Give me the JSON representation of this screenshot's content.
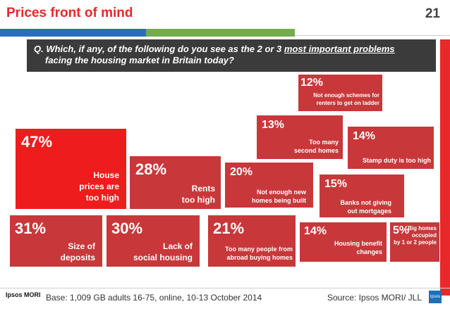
{
  "header": {
    "title": "Prices front of mind",
    "page_number": "21"
  },
  "question": {
    "line1_prefix": "Q. Which, if any, of the following do you see as the 2 or 3 ",
    "line1_underlined": "most important problems",
    "line2": "facing the housing market in Britain today?"
  },
  "colors": {
    "accent_red": "#e8282b",
    "box_red": "#c8383a",
    "highlight_red": "#ee1c1c",
    "question_bg": "#3b3b3b",
    "rule_blue": "#2a6ebb",
    "rule_green": "#72ac4c"
  },
  "chart_data": {
    "type": "table",
    "items": [
      {
        "pct": "47%",
        "label": "House\nprices are\ntoo high"
      },
      {
        "pct": "28%",
        "label": "Rents\ntoo high"
      },
      {
        "pct": "31%",
        "label": "Size of\ndeposits"
      },
      {
        "pct": "30%",
        "label": "Lack of\nsocial housing"
      },
      {
        "pct": "21%",
        "label": "Too many people from\nabroad buying homes"
      },
      {
        "pct": "20%",
        "label": "Not enough new\nhomes being built"
      },
      {
        "pct": "13%",
        "label": "Too many\nsecond homes"
      },
      {
        "pct": "12%",
        "label": "Not enough schemes for\nrenters to get on ladder"
      },
      {
        "pct": "14%",
        "label": "Stamp duty is too high"
      },
      {
        "pct": "15%",
        "label": "Banks not giving\nout mortgages"
      },
      {
        "pct": "14%",
        "label": "Housing benefit\nchanges"
      },
      {
        "pct": "5%",
        "label": "Big homes\noccupied\nby 1 or 2 people"
      }
    ]
  },
  "footer": {
    "logo": "Ipsos MORI",
    "base": "Base: 1,009 GB adults 16-75, online, 10-13 October 2014",
    "source": "Source: Ipsos MORI/ JLL",
    "badge": "Ipsos"
  }
}
